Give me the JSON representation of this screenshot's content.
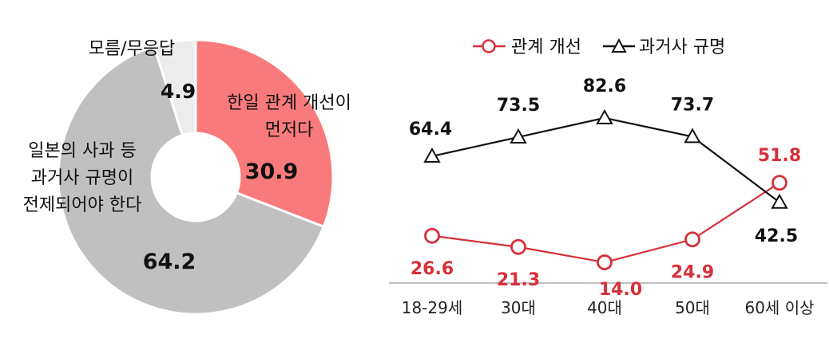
{
  "chart_data": [
    {
      "type": "pie",
      "variant": "donut",
      "slices": [
        {
          "label": "한일 관계 개선이 먼저다",
          "label_lines": [
            "한일 관계 개선이",
            "먼저다"
          ],
          "value": 30.9,
          "value_label": "30.9",
          "color": "#f97a7a"
        },
        {
          "label": "일본의 사과 등 과거사 규명이 전제되어야 한다",
          "label_lines": [
            "일본의 사과 등",
            "과거사 규명이",
            "전제되어야 한다"
          ],
          "value": 64.2,
          "value_label": "64.2",
          "color": "#c0c0c0"
        },
        {
          "label": "모름/무응답",
          "label_lines": [
            "모름/무응답"
          ],
          "value": 4.9,
          "value_label": "4.9",
          "color": "#ececec"
        }
      ]
    },
    {
      "type": "line",
      "categories": [
        "18-29세",
        "30대",
        "40대",
        "50대",
        "60세 이상"
      ],
      "series": [
        {
          "name": "관계 개선",
          "values": [
            26.6,
            21.3,
            14.0,
            24.9,
            51.8
          ],
          "value_labels": [
            "26.6",
            "21.3",
            "14.0",
            "24.9",
            "51.8"
          ],
          "color": "#d6303a",
          "marker": "circle"
        },
        {
          "name": "과거사 규명",
          "values": [
            64.4,
            73.5,
            82.6,
            73.7,
            42.5
          ],
          "value_labels": [
            "64.4",
            "73.5",
            "82.6",
            "73.7",
            "42.5"
          ],
          "color": "#111111",
          "marker": "triangle"
        }
      ],
      "legend": "top",
      "ylim": [
        0,
        100
      ],
      "grid": false
    }
  ]
}
